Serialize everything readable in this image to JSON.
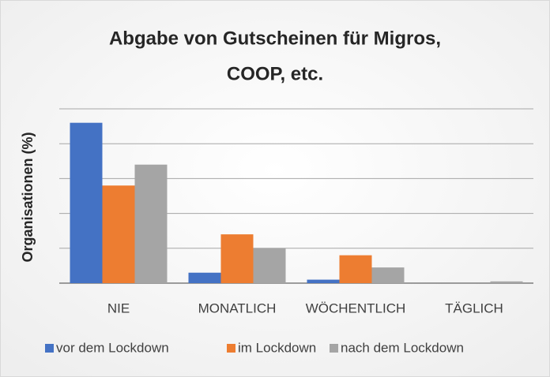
{
  "chart_data": {
    "type": "bar",
    "title_lines": [
      "Abgabe von Gutscheinen für Migros,",
      "COOP, etc."
    ],
    "y_label": "Organisationen (%)",
    "categories": [
      "NIE",
      "MONATLICH",
      "WÖCHENTLICH",
      "TÄGLICH"
    ],
    "series": [
      {
        "name": "vor dem Lockdown",
        "color": "#4472c4",
        "values": [
          46,
          3,
          1,
          0
        ]
      },
      {
        "name": "im Lockdown",
        "color": "#ed7d31",
        "values": [
          28,
          14,
          8,
          0
        ]
      },
      {
        "name": "nach dem Lockdown",
        "color": "#a5a5a5",
        "values": [
          34,
          10,
          4.5,
          0.5
        ]
      }
    ],
    "ylim": [
      0,
      50
    ],
    "yticks": [
      0,
      10,
      20,
      30,
      40,
      50
    ],
    "grid": true,
    "legend": "bottom"
  }
}
